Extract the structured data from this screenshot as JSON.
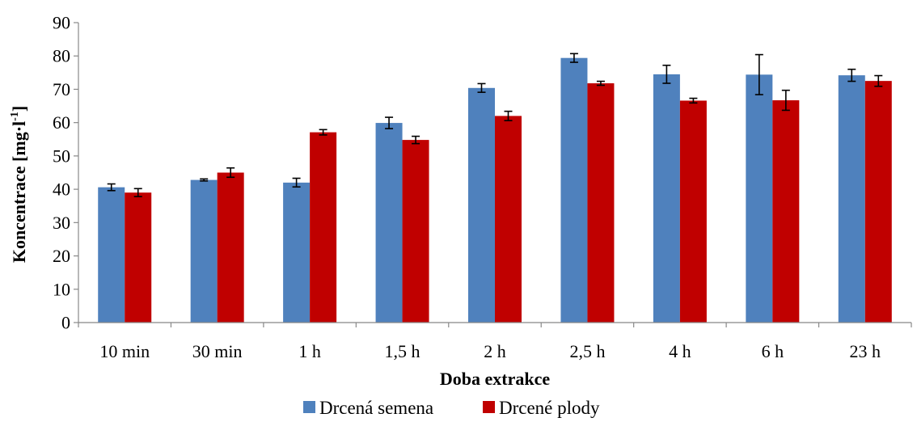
{
  "chart_data": {
    "type": "bar",
    "title": "",
    "xlabel": "Doba extrakce",
    "ylabel_main": "Koncentrace  [mg·l",
    "ylabel_sup": "-1",
    "ylabel_end": "]",
    "ylim": [
      0,
      90
    ],
    "ytick_step": 10,
    "yticks": [
      "0",
      "10",
      "20",
      "30",
      "40",
      "50",
      "60",
      "70",
      "80",
      "90"
    ],
    "grid": false,
    "legend_position": "bottom",
    "categories": [
      "10 min",
      "30 min",
      "1 h",
      "1,5 h",
      "2 h",
      "2,5 h",
      "4 h",
      "6 h",
      "23 h"
    ],
    "series": [
      {
        "name": "Drcená semena",
        "color": "#4F81BD",
        "values": [
          40.6,
          42.8,
          42.0,
          59.9,
          70.4,
          79.4,
          74.5,
          74.4,
          74.2
        ],
        "errors": [
          1.0,
          0.3,
          1.3,
          1.7,
          1.3,
          1.3,
          2.7,
          6.0,
          1.8
        ]
      },
      {
        "name": "Drcené plody",
        "color": "#C00000",
        "values": [
          39.0,
          45.0,
          57.1,
          54.8,
          62.0,
          71.8,
          66.6,
          66.7,
          72.5
        ],
        "errors": [
          1.2,
          1.4,
          0.8,
          1.1,
          1.4,
          0.6,
          0.7,
          3.0,
          1.6
        ]
      }
    ]
  }
}
